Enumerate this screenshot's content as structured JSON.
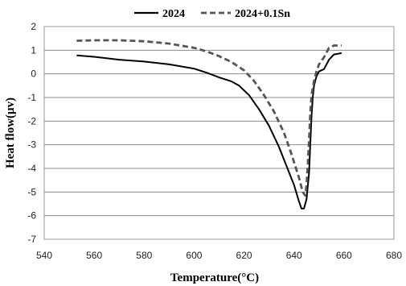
{
  "chart_data": {
    "type": "line",
    "title": "",
    "xlabel": "Temperature(°C)",
    "ylabel": "Heat flow(μv)",
    "xlim": [
      540,
      680
    ],
    "ylim": [
      -7,
      2
    ],
    "xticks": [
      540,
      560,
      580,
      600,
      620,
      640,
      660,
      680
    ],
    "yticks": [
      2,
      1,
      0,
      -1,
      -2,
      -3,
      -4,
      -5,
      -6,
      -7
    ],
    "grid": "horizontal",
    "legend_position": "top",
    "series": [
      {
        "name": "2024",
        "color": "#000000",
        "style": "solid",
        "points": [
          [
            553,
            0.78
          ],
          [
            560,
            0.72
          ],
          [
            570,
            0.6
          ],
          [
            580,
            0.52
          ],
          [
            590,
            0.4
          ],
          [
            600,
            0.22
          ],
          [
            605,
            0.05
          ],
          [
            610,
            -0.15
          ],
          [
            615,
            -0.32
          ],
          [
            618,
            -0.5
          ],
          [
            622,
            -0.9
          ],
          [
            626,
            -1.5
          ],
          [
            630,
            -2.2
          ],
          [
            634,
            -3.1
          ],
          [
            637,
            -3.9
          ],
          [
            640,
            -4.7
          ],
          [
            642,
            -5.4
          ],
          [
            643,
            -5.7
          ],
          [
            644,
            -5.7
          ],
          [
            645,
            -5.3
          ],
          [
            646,
            -4.2
          ],
          [
            646.5,
            -3.0
          ],
          [
            647,
            -1.8
          ],
          [
            647.5,
            -1.0
          ],
          [
            648,
            -0.5
          ],
          [
            649,
            -0.1
          ],
          [
            650,
            0.1
          ],
          [
            652,
            0.2
          ],
          [
            654,
            0.6
          ],
          [
            656,
            0.82
          ],
          [
            659,
            0.88
          ]
        ]
      },
      {
        "name": "2024+0.1Sn",
        "color": "#555555",
        "style": "dashed",
        "points": [
          [
            553,
            1.4
          ],
          [
            560,
            1.42
          ],
          [
            570,
            1.42
          ],
          [
            580,
            1.38
          ],
          [
            590,
            1.28
          ],
          [
            600,
            1.1
          ],
          [
            605,
            0.95
          ],
          [
            610,
            0.75
          ],
          [
            615,
            0.5
          ],
          [
            620,
            0.15
          ],
          [
            624,
            -0.3
          ],
          [
            628,
            -0.9
          ],
          [
            632,
            -1.6
          ],
          [
            636,
            -2.5
          ],
          [
            639,
            -3.4
          ],
          [
            642,
            -4.4
          ],
          [
            643.5,
            -5.0
          ],
          [
            644.5,
            -5.15
          ],
          [
            645,
            -4.7
          ],
          [
            645.5,
            -3.9
          ],
          [
            646,
            -2.8
          ],
          [
            646.5,
            -1.7
          ],
          [
            647,
            -0.9
          ],
          [
            648,
            -0.3
          ],
          [
            649,
            0.1
          ],
          [
            650,
            0.4
          ],
          [
            652,
            0.7
          ],
          [
            654,
            1.1
          ],
          [
            656,
            1.2
          ],
          [
            659,
            1.2
          ]
        ]
      }
    ]
  }
}
